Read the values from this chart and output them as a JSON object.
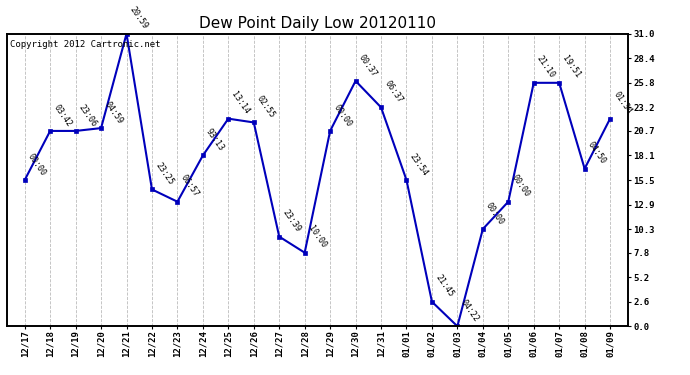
{
  "title": "Dew Point Daily Low 20120110",
  "copyright": "Copyright 2012 Cartronic.net",
  "x_labels": [
    "12/17",
    "12/18",
    "12/19",
    "12/20",
    "12/21",
    "12/22",
    "12/23",
    "12/24",
    "12/25",
    "12/26",
    "12/27",
    "12/28",
    "12/29",
    "12/30",
    "12/31",
    "01/01",
    "01/02",
    "01/03",
    "01/04",
    "01/05",
    "01/06",
    "01/07",
    "01/08",
    "01/09"
  ],
  "y_values": [
    15.5,
    20.7,
    20.7,
    21.0,
    31.0,
    14.5,
    13.2,
    18.1,
    22.0,
    21.6,
    9.5,
    7.8,
    20.7,
    26.0,
    23.2,
    15.5,
    2.6,
    0.0,
    10.3,
    13.2,
    25.8,
    25.8,
    16.7,
    22.0
  ],
  "point_labels": [
    "00:00",
    "03:42",
    "23:06",
    "04:59",
    "20:59",
    "23:25",
    "06:57",
    "93:13",
    "13:14",
    "02:55",
    "23:39",
    "10:00",
    "00:00",
    "00:37",
    "06:37",
    "23:54",
    "21:45",
    "04:22",
    "00:00",
    "00:00",
    "21:10",
    "19:51",
    "04:50",
    "01:34"
  ],
  "y_right_labels": [
    31.0,
    28.4,
    25.8,
    23.2,
    20.7,
    18.1,
    15.5,
    12.9,
    10.3,
    7.8,
    5.2,
    2.6,
    0.0
  ],
  "y_min": 0.0,
  "y_max": 31.0,
  "line_color": "#0000bb",
  "marker_color": "#0000bb",
  "bg_color": "#ffffff",
  "grid_color": "#bbbbbb",
  "title_fontsize": 11,
  "label_fontsize": 6.5,
  "point_label_fontsize": 6.0,
  "copyright_fontsize": 6.5
}
